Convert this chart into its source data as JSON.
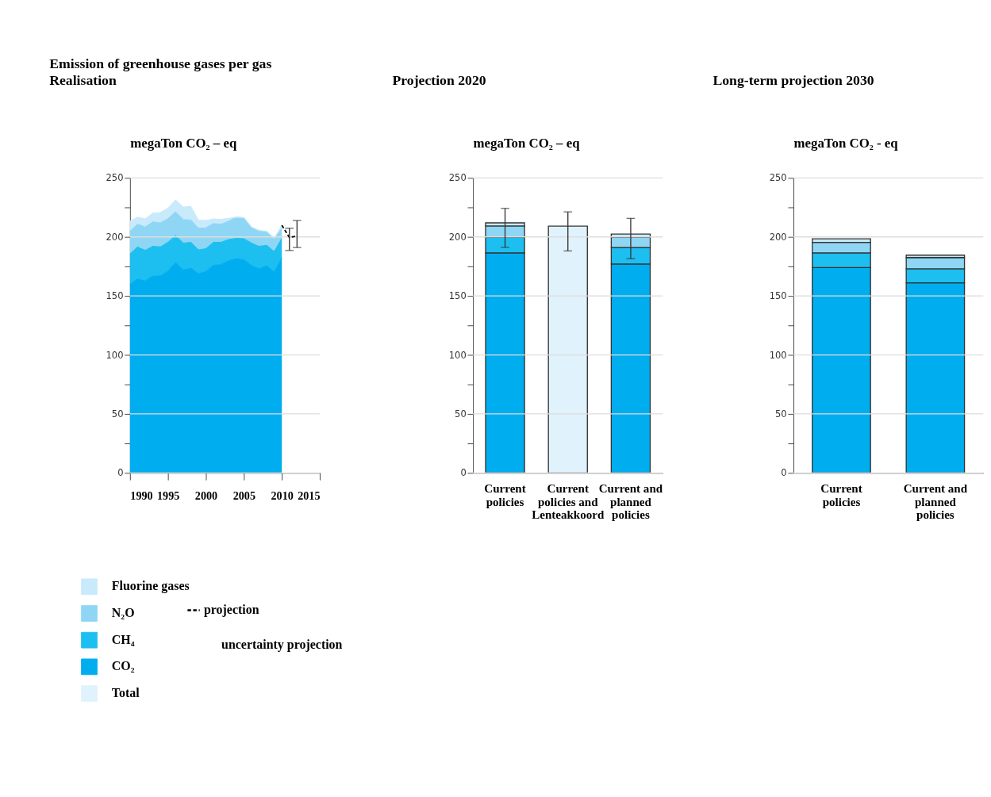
{
  "chart_data": [
    {
      "type": "area",
      "title": "Emission of greenhouse gases per gas",
      "subtitle": "Realisation",
      "ylabel": "megaTon CO₂ – eq",
      "stacked": true,
      "grid": "y",
      "legend": "bottom left",
      "x": [
        1990,
        1991,
        1992,
        1993,
        1994,
        1995,
        1996,
        1997,
        1998,
        1999,
        2000,
        2001,
        2002,
        2003,
        2004,
        2005,
        2006,
        2007,
        2008,
        2009,
        2010
      ],
      "xlim": [
        1990,
        2015
      ],
      "xticks": [
        1990,
        1995,
        2000,
        2005,
        2010,
        2015
      ],
      "ylim": [
        0,
        250
      ],
      "yticks": [
        0,
        {
          "value": 25,
          "label": null
        },
        50,
        {
          "value": 75,
          "label": null
        },
        100,
        {
          "value": 125,
          "label": null
        },
        150,
        {
          "value": 175,
          "label": null
        },
        200,
        {
          "value": 225,
          "label": null
        },
        250
      ],
      "series": [
        {
          "name": "CO₂",
          "color": "#00adef",
          "values": [
            159.7,
            164.3,
            162.7,
            166.7,
            167,
            171,
            178,
            172,
            173.6,
            168.7,
            170.6,
            176,
            176.6,
            179.6,
            181.4,
            180.6,
            175.6,
            173,
            175.6,
            170,
            182.1
          ]
        },
        {
          "name": "CH₄",
          "color": "#1cbff0",
          "values": [
            25.8,
            27.2,
            25.8,
            25.3,
            24.5,
            24.4,
            23,
            22.8,
            21.8,
            20.3,
            19.4,
            19.4,
            18.8,
            18.2,
            17.4,
            17.8,
            19.2,
            19,
            17.3,
            17.5,
            16.7
          ]
        },
        {
          "name": "N₂O",
          "color": "#8fd6f5",
          "values": [
            19.3,
            19.2,
            19.8,
            20.7,
            20.4,
            19.9,
            20.2,
            19.9,
            18.9,
            18.3,
            17.7,
            15.9,
            15.3,
            15.5,
            17.9,
            17.9,
            13.5,
            13.4,
            11.5,
            10.9,
            8.2
          ]
        },
        {
          "name": "Fluorine gases",
          "color": "#c8eafa",
          "values": [
            8.5,
            6,
            6.9,
            7.5,
            8.7,
            8.9,
            10,
            10.5,
            11.5,
            7,
            6.2,
            4,
            4.2,
            2.4,
            0,
            0,
            0,
            0,
            0.4,
            0.4,
            2.9
          ]
        },
        {
          "name": "projection",
          "type": "line",
          "line_style": "dashed",
          "color": "#000000",
          "x": [
            2010,
            2011,
            2012
          ],
          "values": [
            209.9,
            199.4,
            200.8
          ],
          "errors": [
            null,
            [
              188.5,
              207.3
            ],
            [
              191,
              213.9
            ]
          ]
        }
      ],
      "annotations": [
        "uncertainty projection"
      ]
    },
    {
      "type": "bar",
      "title": "Projection 2020",
      "ylabel": "megaTon CO₂ – eq",
      "stacked": true,
      "grid": "y",
      "categories": [
        "Current policies",
        "Current policies and Lenteakkoord",
        "Current and planned policies"
      ],
      "ylim": [
        0,
        250
      ],
      "yticks": [
        0,
        {
          "value": 25,
          "label": null
        },
        50,
        {
          "value": 75,
          "label": null
        },
        100,
        {
          "value": 125,
          "label": null
        },
        150,
        {
          "value": 175,
          "label": null
        },
        200,
        {
          "value": 225,
          "label": null
        },
        250
      ],
      "series": [
        {
          "name": "CO₂",
          "color": "#00adef",
          "values": [
            186.5,
            null,
            177
          ]
        },
        {
          "name": "CH₄",
          "color": "#1cbff0",
          "values": [
            13.3,
            null,
            14
          ]
        },
        {
          "name": "N₂O",
          "color": "#8fd6f5",
          "values": [
            9.5,
            null,
            8.8
          ]
        },
        {
          "name": "Fluorine gases",
          "color": "#c8eafa",
          "values": [
            2.6,
            null,
            2.6
          ],
          "errors": [
            [
              191.1,
              224.2
            ],
            null,
            [
              181.5,
              215.7
            ]
          ]
        },
        {
          "name": "Total",
          "color": "#e0f2fc",
          "values": [
            null,
            209.1,
            null
          ],
          "errors": [
            null,
            [
              188.1,
              221.2
            ],
            null
          ]
        }
      ]
    },
    {
      "type": "bar",
      "title": "Long-term projection 2030",
      "ylabel": "megaTon CO₂ - eq",
      "stacked": true,
      "grid": "y",
      "categories": [
        "Current policies",
        "Current and planned policies"
      ],
      "ylim": [
        0,
        250
      ],
      "yticks": [
        0,
        {
          "value": 25,
          "label": null
        },
        50,
        {
          "value": 75,
          "label": null
        },
        100,
        {
          "value": 125,
          "label": null
        },
        150,
        {
          "value": 175,
          "label": null
        },
        200,
        {
          "value": 225,
          "label": null
        },
        250
      ],
      "series": [
        {
          "name": "CO₂",
          "color": "#00adef",
          "values": [
            174,
            161.1
          ]
        },
        {
          "name": "CH₄",
          "color": "#1cbff0",
          "values": [
            12.5,
            11.9
          ]
        },
        {
          "name": "N₂O",
          "color": "#8fd6f5",
          "values": [
            8.9,
            9.5
          ]
        },
        {
          "name": "Fluorine gases",
          "color": "#c8eafa",
          "values": [
            3.0,
            2.0
          ]
        }
      ]
    }
  ]
}
